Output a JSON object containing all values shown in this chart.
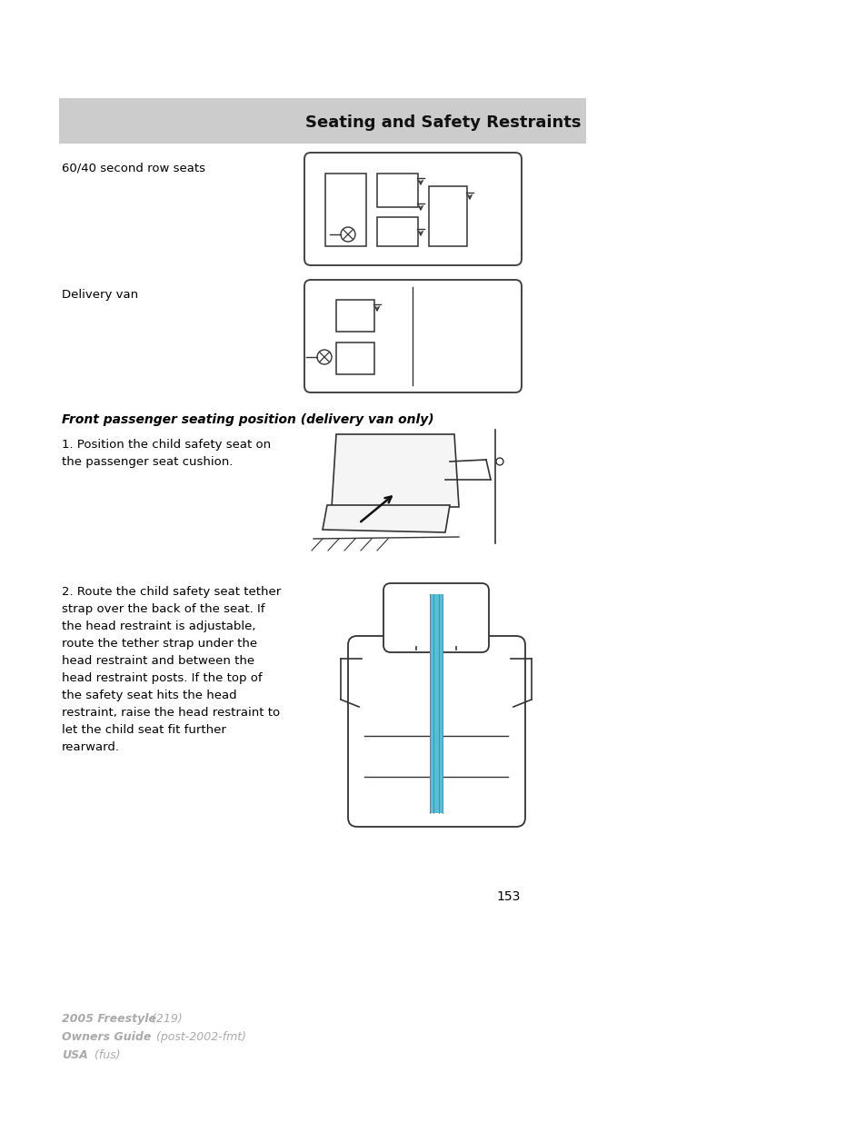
{
  "page_bg": "#ffffff",
  "header_bg": "#cccccc",
  "header_text": "Seating and Safety Restraints",
  "label_60_40": "60/40 second row seats",
  "label_delivery": "Delivery van",
  "label_front_bold": "Front passenger seating position (delivery van only)",
  "label_step1": "1. Position the child safety seat on\nthe passenger seat cushion.",
  "label_step2": "2. Route the child safety seat tether\nstrap over the back of the seat. If\nthe head restraint is adjustable,\nroute the tether strap under the\nhead restraint and between the\nhead restraint posts. If the top of\nthe safety seat hits the head\nrestraint, raise the head restraint to\nlet the child seat fit further\nrearward.",
  "page_number": "153",
  "footer_line1": "2005 Freestyle",
  "footer_line1b": " (219)",
  "footer_line2": "Owners Guide",
  "footer_line2b": " (post-2002-fmt)",
  "footer_line3": "USA",
  "footer_line3b": " (fus)",
  "footer_color": "#aaaaaa",
  "blue_strap": "#5bbcd6",
  "line_color": "#333333"
}
